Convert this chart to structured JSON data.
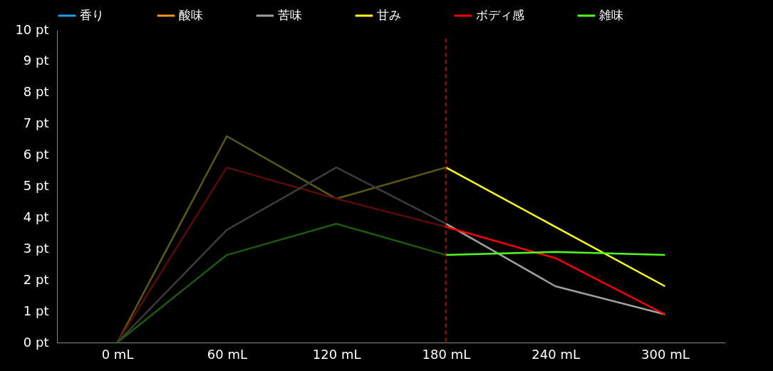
{
  "chart_data": {
    "type": "line",
    "categories": [
      "0 mL",
      "60 mL",
      "120 mL",
      "180 mL",
      "240 mL",
      "300 mL"
    ],
    "ylim": [
      0,
      10
    ],
    "yticks": [
      {
        "value": 0,
        "label": "0 pt"
      },
      {
        "value": 1,
        "label": "1 pt"
      },
      {
        "value": 2,
        "label": "2 pt"
      },
      {
        "value": 3,
        "label": "3 pt"
      },
      {
        "value": 4,
        "label": "4 pt"
      },
      {
        "value": 5,
        "label": "5 pt"
      },
      {
        "value": 6,
        "label": "6 pt"
      },
      {
        "value": 7,
        "label": "7 pt"
      },
      {
        "value": 8,
        "label": "8 pt"
      },
      {
        "value": 9,
        "label": "9 pt"
      },
      {
        "value": 10,
        "label": "10 pt"
      }
    ],
    "grid": false,
    "legend": "top",
    "marker": "none",
    "line_style": "solid",
    "ref_lines": [
      {
        "axis": "x",
        "value": "180 mL",
        "color": "#e00000",
        "line_style": "dashed"
      }
    ],
    "series": [
      {
        "color": "#5c5a10",
        "values": [
          0,
          6.6,
          4.6,
          5.6,
          null,
          null
        ]
      },
      {
        "color": "#5a0a0a",
        "values": [
          0,
          5.6,
          4.6,
          3.7,
          null,
          null
        ]
      },
      {
        "color": "#3c3c3c",
        "values": [
          0,
          3.6,
          5.6,
          3.8,
          null,
          null
        ]
      },
      {
        "color": "#1c5a10",
        "values": [
          0,
          2.8,
          3.8,
          2.8,
          null,
          null
        ]
      },
      {
        "name": "香り",
        "color": "#1ba1e2",
        "values": [
          null,
          null,
          null,
          null,
          null,
          null
        ]
      },
      {
        "name": "酸味",
        "color": "#f0961e",
        "values": [
          null,
          null,
          null,
          null,
          null,
          null
        ]
      },
      {
        "name": "苦味",
        "color": "#a0a0a0",
        "values": [
          null,
          null,
          null,
          3.8,
          1.8,
          0.9
        ]
      },
      {
        "name": "甘み",
        "color": "#ffff1e",
        "values": [
          null,
          null,
          null,
          5.6,
          3.7,
          1.8
        ]
      },
      {
        "name": "ボディ感",
        "color": "#ff0000",
        "values": [
          null,
          null,
          null,
          3.7,
          2.7,
          0.9
        ]
      },
      {
        "name": "雑味",
        "color": "#50ff1e",
        "values": [
          null,
          null,
          null,
          2.8,
          2.9,
          2.8
        ]
      }
    ]
  }
}
